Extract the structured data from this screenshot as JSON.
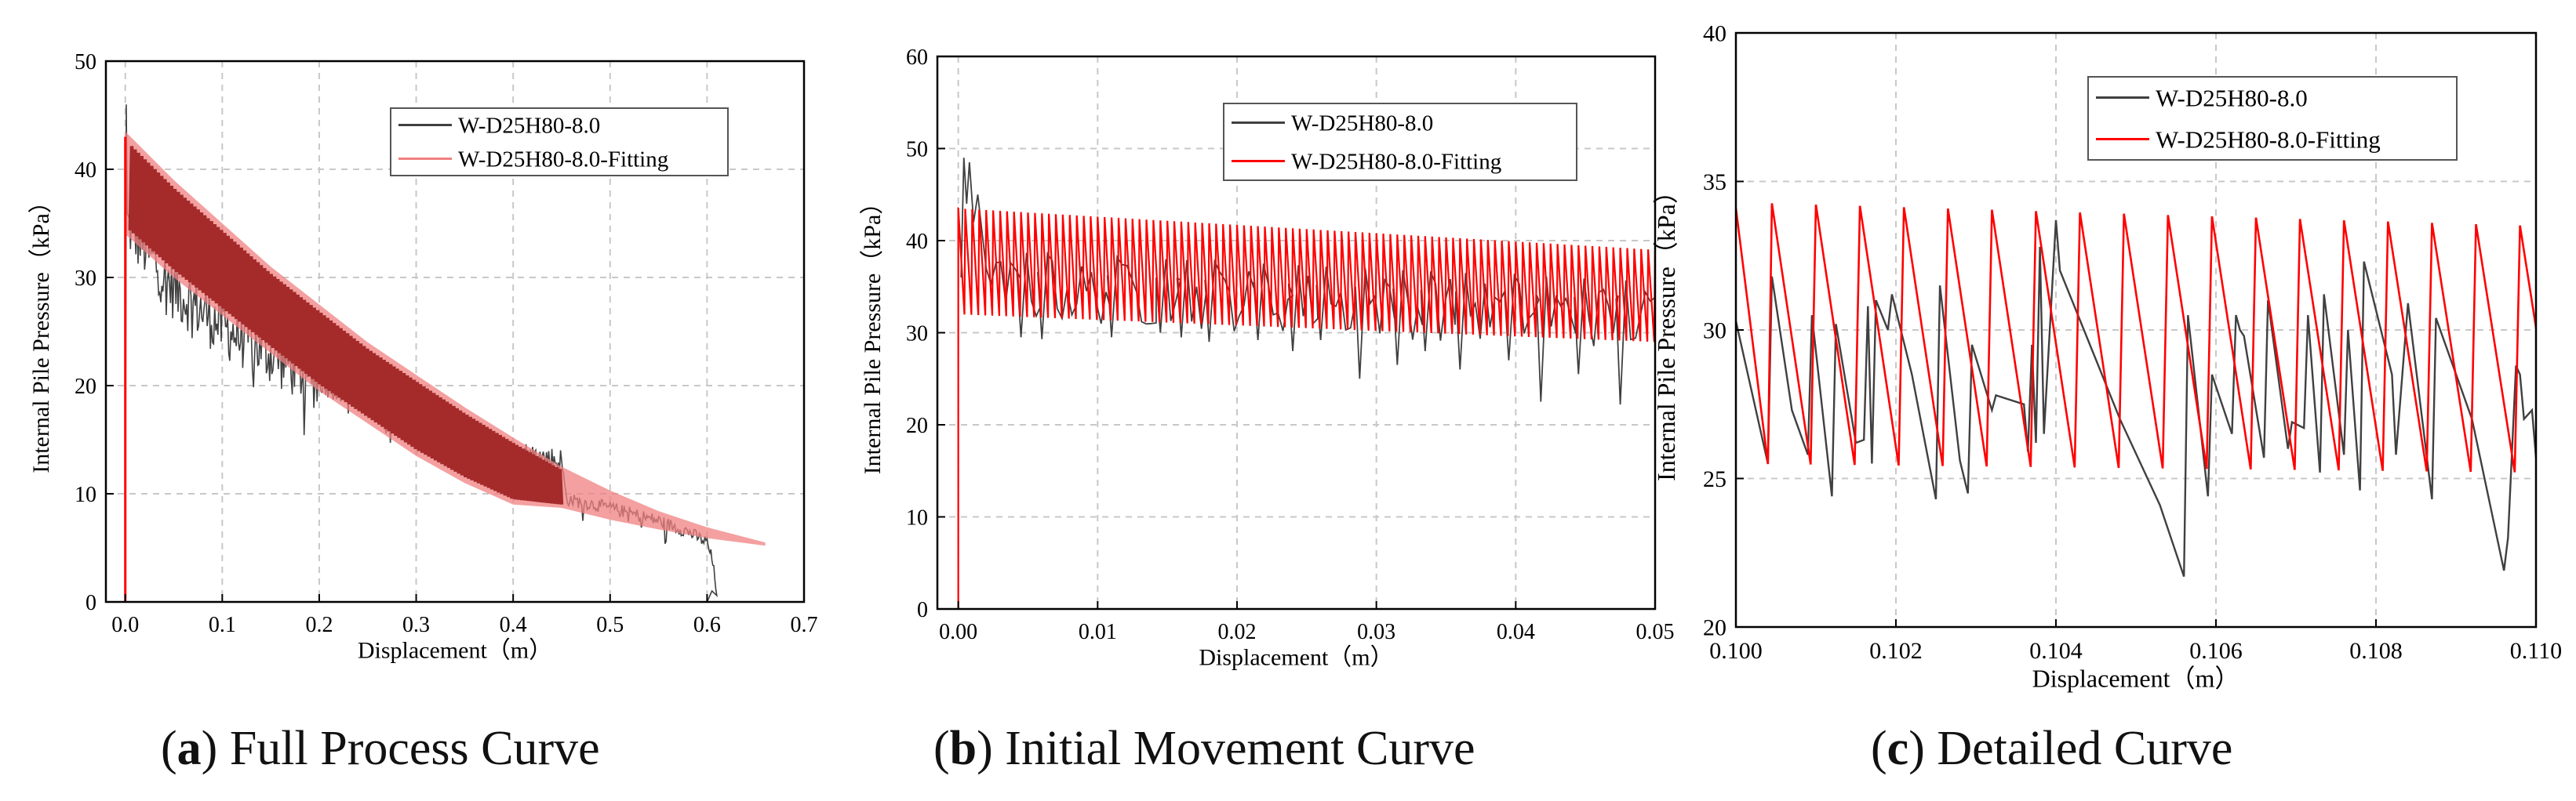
{
  "colors": {
    "black_series": "#404040",
    "fit_light": "#f08080",
    "fit_dark": "#a52a2a",
    "fit_red": "#ff0000",
    "grid": "#c8c8c8"
  },
  "chart_data": [
    {
      "id": "a",
      "type": "line",
      "xlabel": "Displacement（m）",
      "ylabel": "Internal Pile Pressure（kPa）",
      "xlim": [
        -0.02,
        0.7
      ],
      "ylim": [
        0,
        50
      ],
      "xticks": [
        "0.0",
        "0.1",
        "0.2",
        "0.3",
        "0.4",
        "0.5",
        "0.6",
        "0.7"
      ],
      "xtick_values": [
        0,
        0.1,
        0.2,
        0.3,
        0.4,
        0.5,
        0.6,
        0.7
      ],
      "yticks": [
        "0",
        "10",
        "20",
        "30",
        "40",
        "50"
      ],
      "ytick_values": [
        0,
        10,
        20,
        30,
        40,
        50
      ],
      "grid": true,
      "legend_position": "top-right",
      "series": [
        {
          "name": "W-D25H80-8.0",
          "style": "noisy",
          "x": [
            0,
            0.002,
            0.05,
            0.1,
            0.15,
            0.2,
            0.25,
            0.3,
            0.35,
            0.4,
            0.45,
            0.455,
            0.5,
            0.55,
            0.58,
            0.6,
            0.605,
            0.61,
            0.6
          ],
          "y": [
            0,
            35,
            29,
            25.5,
            23,
            20.5,
            18.5,
            16.5,
            15,
            13.8,
            13,
            9.5,
            8.7,
            7.5,
            6.5,
            5.5,
            4,
            1,
            0
          ]
        },
        {
          "name": "W-D25H80-8.0-Fitting",
          "style": "band",
          "x": [
            0,
            0.05,
            0.1,
            0.15,
            0.2,
            0.25,
            0.3,
            0.35,
            0.4,
            0.45,
            0.5,
            0.55,
            0.6,
            0.66
          ],
          "upper": [
            43.5,
            39,
            35,
            31,
            27.5,
            24,
            21,
            18,
            15.2,
            12.5,
            10.3,
            8.4,
            6.9,
            5.5
          ],
          "lower": [
            34,
            30,
            26.5,
            23,
            19.5,
            16.5,
            13.5,
            11,
            9,
            8.7,
            7.6,
            6.7,
            5.9,
            5.2
          ]
        }
      ]
    },
    {
      "id": "b",
      "type": "line",
      "xlabel": "Displacement（m）",
      "ylabel": "Internal Pile Pressure（kPa）",
      "xlim": [
        -0.0015,
        0.05
      ],
      "ylim": [
        0,
        60
      ],
      "xticks": [
        "0.00",
        "0.01",
        "0.02",
        "0.03",
        "0.04",
        "0.05"
      ],
      "xtick_values": [
        0,
        0.01,
        0.02,
        0.03,
        0.04,
        0.05
      ],
      "yticks": [
        "0",
        "10",
        "20",
        "30",
        "40",
        "50",
        "60"
      ],
      "ytick_values": [
        0,
        10,
        20,
        30,
        40,
        50,
        60
      ],
      "grid": true,
      "legend_position": "top-right",
      "series": [
        {
          "name": "W-D25H80-8.0",
          "style": "dips",
          "x0": 0,
          "x1": 0.05,
          "base_start": 35,
          "base_end": 31.5,
          "peak": 49,
          "dips": [
            [
              0.0045,
              29.5
            ],
            [
              0.006,
              29.3
            ],
            [
              0.011,
              29.5
            ],
            [
              0.0145,
              30
            ],
            [
              0.016,
              29.5
            ],
            [
              0.018,
              29
            ],
            [
              0.0215,
              29.2
            ],
            [
              0.024,
              28
            ],
            [
              0.026,
              29.2
            ],
            [
              0.0288,
              25
            ],
            [
              0.0315,
              26.5
            ],
            [
              0.0335,
              28
            ],
            [
              0.036,
              26
            ],
            [
              0.0395,
              27
            ],
            [
              0.0418,
              22.5
            ],
            [
              0.0445,
              25.5
            ],
            [
              0.0475,
              22.2
            ]
          ]
        },
        {
          "name": "W-D25H80-8.0-Fitting",
          "style": "sawtooth",
          "x0": 0,
          "x1": 0.05,
          "period": 0.0005,
          "top_start": 43.5,
          "top_end": 39,
          "bot_start": 32,
          "bot_end": 29
        }
      ]
    },
    {
      "id": "c",
      "type": "line",
      "xlabel": "Displacement（m）",
      "ylabel": "Internal Pile Pressure（kPa）",
      "xlim": [
        0.1,
        0.11
      ],
      "ylim": [
        20,
        40
      ],
      "xticks": [
        "0.100",
        "0.102",
        "0.104",
        "0.106",
        "0.108",
        "0.110"
      ],
      "xtick_values": [
        0.1,
        0.102,
        0.104,
        0.106,
        0.108,
        0.11
      ],
      "yticks": [
        "20",
        "25",
        "30",
        "35",
        "40"
      ],
      "ytick_values": [
        20,
        25,
        30,
        35,
        40
      ],
      "grid": true,
      "legend_position": "top-right",
      "series": [
        {
          "name": "W-D25H80-8.0",
          "style": "line",
          "x": [
            0.1,
            0.1004,
            0.10045,
            0.1007,
            0.1009,
            0.10095,
            0.1012,
            0.10125,
            0.1015,
            0.1016,
            0.10165,
            0.1017,
            0.10175,
            0.1019,
            0.10195,
            0.1022,
            0.1025,
            0.10255,
            0.1028,
            0.1029,
            0.10295,
            0.1032,
            0.10325,
            0.1036,
            0.10365,
            0.1037,
            0.10375,
            0.1038,
            0.10385,
            0.104,
            0.10405,
            0.1048,
            0.1053,
            0.1056,
            0.10565,
            0.1059,
            0.10595,
            0.1062,
            0.10625,
            0.1063,
            0.10635,
            0.1066,
            0.10665,
            0.1069,
            0.10695,
            0.1071,
            0.10715,
            0.1073,
            0.10735,
            0.1076,
            0.10765,
            0.1078,
            0.10785,
            0.1082,
            0.10825,
            0.1084,
            0.1087,
            0.10875,
            0.1092,
            0.1096,
            0.10965,
            0.10975,
            0.1098,
            0.10985,
            0.10995,
            0.11
          ],
          "y": [
            30.3,
            25.5,
            31.8,
            27.3,
            25.8,
            30.5,
            24.4,
            30.2,
            26.2,
            26.3,
            30.8,
            25.5,
            31,
            30,
            31.2,
            28.5,
            24.3,
            31.5,
            25.6,
            24.5,
            29.5,
            27.3,
            27.8,
            27.5,
            25.9,
            29.5,
            26.2,
            32.8,
            26.5,
            33.7,
            32,
            27,
            24.1,
            21.7,
            30.5,
            24.4,
            28.5,
            26.5,
            30.5,
            30,
            29.8,
            25.7,
            31,
            26,
            26.9,
            26.7,
            30.5,
            25.2,
            31.2,
            25.8,
            30,
            24.6,
            32.3,
            28.5,
            25.8,
            30.9,
            24.3,
            30.4,
            27,
            21.9,
            23,
            28.8,
            28.5,
            27,
            27.3,
            25.7
          ]
        },
        {
          "name": "W-D25H80-8.0-Fitting",
          "style": "sawtooth",
          "x0": 0.1,
          "x1": 0.11,
          "period": 0.00055,
          "phase": 0.00045,
          "top_start": 34.3,
          "top_end": 33.5,
          "bot_start": 25.5,
          "bot_end": 25.2
        }
      ]
    }
  ],
  "captions": [
    {
      "letter": "a",
      "text": " Full Process Curve"
    },
    {
      "letter": "b",
      "text": " Initial Movement Curve"
    },
    {
      "letter": "c",
      "text": " Detailed Curve"
    }
  ]
}
